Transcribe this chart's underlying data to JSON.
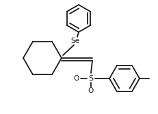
{
  "bg_color": "#ffffff",
  "line_color": "#1a1a1a",
  "line_width": 1.3,
  "font_size": 7.5,
  "figsize": [
    2.32,
    1.67
  ],
  "dpi": 100,
  "xlim": [
    0,
    232
  ],
  "ylim": [
    0,
    167
  ]
}
